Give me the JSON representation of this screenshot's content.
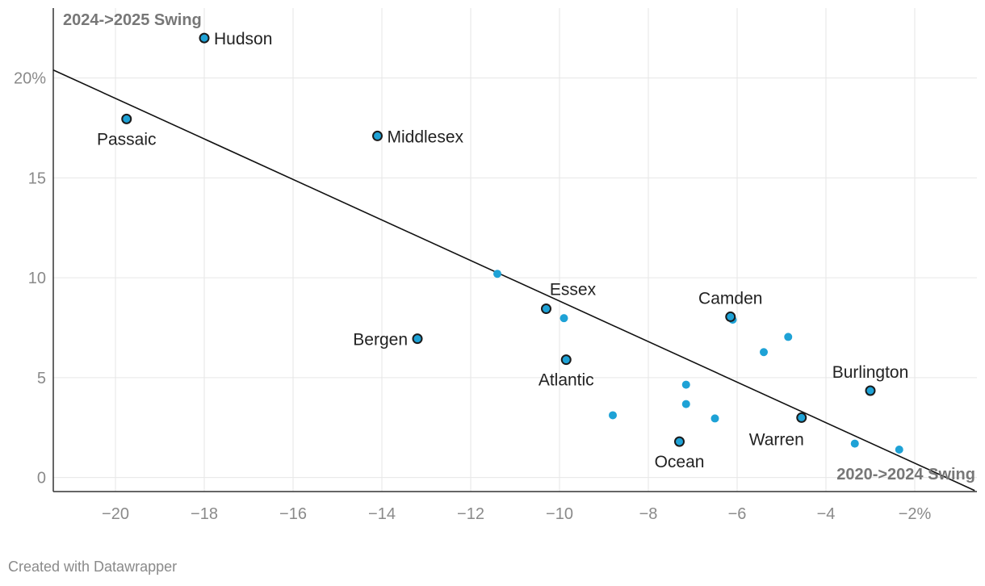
{
  "chart_data": {
    "type": "scatter",
    "title": "",
    "xlabel": "2020->2024 Swing",
    "ylabel": "2024->2025 Swing",
    "xlim": [
      -21.4,
      -0.6
    ],
    "ylim": [
      -0.7,
      23.5
    ],
    "x_ticks": [
      {
        "value": -20,
        "label": "−20"
      },
      {
        "value": -18,
        "label": "−18"
      },
      {
        "value": -16,
        "label": "−16"
      },
      {
        "value": -14,
        "label": "−14"
      },
      {
        "value": -12,
        "label": "−12"
      },
      {
        "value": -10,
        "label": "−10"
      },
      {
        "value": -8,
        "label": "−8"
      },
      {
        "value": -6,
        "label": "−6"
      },
      {
        "value": -4,
        "label": "−4"
      },
      {
        "value": -2,
        "label": "−2%"
      }
    ],
    "y_ticks": [
      {
        "value": 0,
        "label": "0"
      },
      {
        "value": 5,
        "label": "5"
      },
      {
        "value": 10,
        "label": "10"
      },
      {
        "value": 15,
        "label": "15"
      },
      {
        "value": 20,
        "label": "20%"
      }
    ],
    "trendline": {
      "x1": -21.4,
      "y1": 20.4,
      "x2": -0.65,
      "y2": -0.65
    },
    "labeled_points": [
      {
        "name": "Hudson",
        "x": -18.0,
        "y": 22.0,
        "label_pos": "right"
      },
      {
        "name": "Passaic",
        "x": -19.75,
        "y": 17.95,
        "label_pos": "below"
      },
      {
        "name": "Middlesex",
        "x": -14.1,
        "y": 17.1,
        "label_pos": "right"
      },
      {
        "name": "Bergen",
        "x": -13.2,
        "y": 6.95,
        "label_pos": "left"
      },
      {
        "name": "Essex",
        "x": -10.3,
        "y": 8.45,
        "label_pos": "above-right"
      },
      {
        "name": "Atlantic",
        "x": -9.85,
        "y": 5.9,
        "label_pos": "below"
      },
      {
        "name": "Camden",
        "x": -6.15,
        "y": 8.05,
        "label_pos": "above"
      },
      {
        "name": "Ocean",
        "x": -7.3,
        "y": 1.8,
        "label_pos": "below"
      },
      {
        "name": "Warren",
        "x": -4.55,
        "y": 3.0,
        "label_pos": "below-left"
      },
      {
        "name": "Burlington",
        "x": -3.0,
        "y": 4.35,
        "label_pos": "above"
      }
    ],
    "unlabeled_points": [
      {
        "x": -11.4,
        "y": 10.2
      },
      {
        "x": -9.9,
        "y": 7.98
      },
      {
        "x": -8.8,
        "y": 3.12
      },
      {
        "x": -7.15,
        "y": 4.65
      },
      {
        "x": -7.15,
        "y": 3.68
      },
      {
        "x": -6.5,
        "y": 2.96
      },
      {
        "x": -6.1,
        "y": 7.9
      },
      {
        "x": -5.4,
        "y": 6.28
      },
      {
        "x": -4.85,
        "y": 7.04
      },
      {
        "x": -3.35,
        "y": 1.7
      },
      {
        "x": -2.35,
        "y": 1.4
      }
    ]
  },
  "footer": {
    "credit": "Created with Datawrapper"
  }
}
